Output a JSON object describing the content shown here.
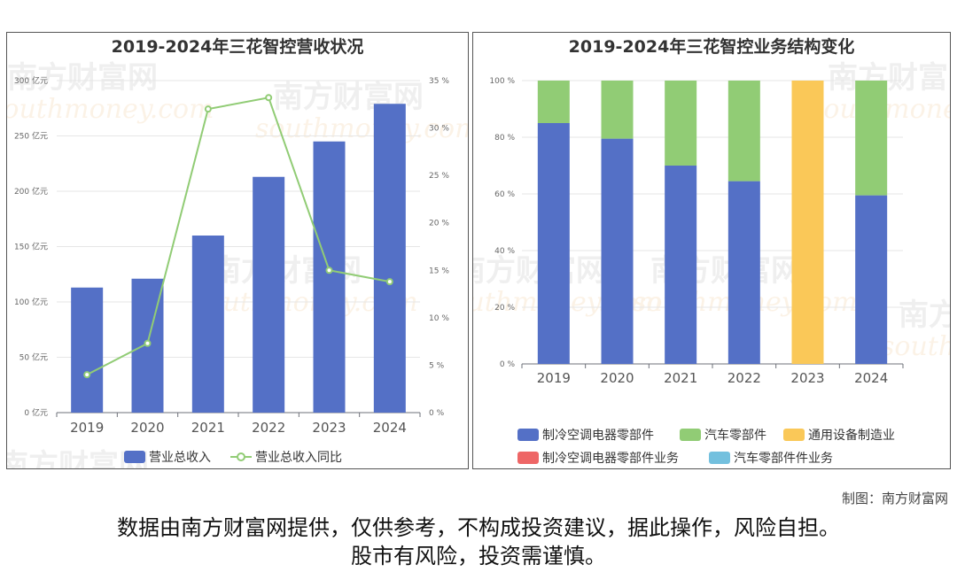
{
  "credit": "制图：南方财富网",
  "disclaimer": {
    "line1": "数据由南方财富网提供，仅供参考，不构成投资建议，据此操作，风险自担。",
    "line2": "股市有风险，投资需谨慎。"
  },
  "watermark": {
    "cn": "南方财富网",
    "en": "southmoney.com"
  },
  "colors": {
    "blue": "#5470c6",
    "green": "#91cc75",
    "yellow": "#fac858",
    "red": "#ee6666",
    "cyan": "#73c0de"
  },
  "chart_data": [
    {
      "type": "bar",
      "title": "2019-2024年三花智控营收状况",
      "categories": [
        "2019",
        "2020",
        "2021",
        "2022",
        "2023",
        "2024"
      ],
      "series": [
        {
          "name": "营业总收入",
          "type": "bar",
          "axis": "left",
          "color": "#5470c6",
          "values": [
            113,
            121,
            160,
            213,
            245,
            279
          ]
        },
        {
          "name": "营业总收入同比",
          "type": "line",
          "axis": "right",
          "color": "#91cc75",
          "values": [
            4.0,
            7.3,
            32.0,
            33.2,
            15.0,
            13.8
          ]
        }
      ],
      "y_left": {
        "min": 0,
        "max": 300,
        "ticks": [
          "0 亿元",
          "50 亿元",
          "100 亿元",
          "150 亿元",
          "200 亿元",
          "250 亿元",
          "300 亿元"
        ]
      },
      "y_right": {
        "min": 0,
        "max": 35,
        "ticks": [
          "0 %",
          "5 %",
          "10 %",
          "15 %",
          "20 %",
          "25 %",
          "30 %",
          "35 %"
        ]
      },
      "legend": "bottom",
      "grid": true
    },
    {
      "type": "bar",
      "stacked": true,
      "title": "2019-2024年三花智控业务结构变化",
      "categories": [
        "2019",
        "2020",
        "2021",
        "2022",
        "2023",
        "2024"
      ],
      "series": [
        {
          "name": "制冷空调电器零部件",
          "color": "#5470c6",
          "values": [
            85,
            79.5,
            70,
            64.5,
            0,
            59.5
          ]
        },
        {
          "name": "汽车零部件",
          "color": "#91cc75",
          "values": [
            15,
            20.5,
            30,
            35.5,
            0,
            40.5
          ]
        },
        {
          "name": "通用设备制造业",
          "color": "#fac858",
          "values": [
            0,
            0,
            0,
            0,
            100,
            0
          ]
        },
        {
          "name": "制冷空调电器零部件业务",
          "color": "#ee6666",
          "values": [
            0,
            0,
            0,
            0,
            0,
            0
          ]
        },
        {
          "name": "汽车零部件件业务",
          "color": "#73c0de",
          "values": [
            0,
            0,
            0,
            0,
            0,
            0
          ]
        }
      ],
      "y": {
        "min": 0,
        "max": 100,
        "ticks": [
          "0 %",
          "20 %",
          "40 %",
          "60 %",
          "80 %",
          "100 %"
        ]
      },
      "legend": "bottom",
      "grid": true
    }
  ]
}
